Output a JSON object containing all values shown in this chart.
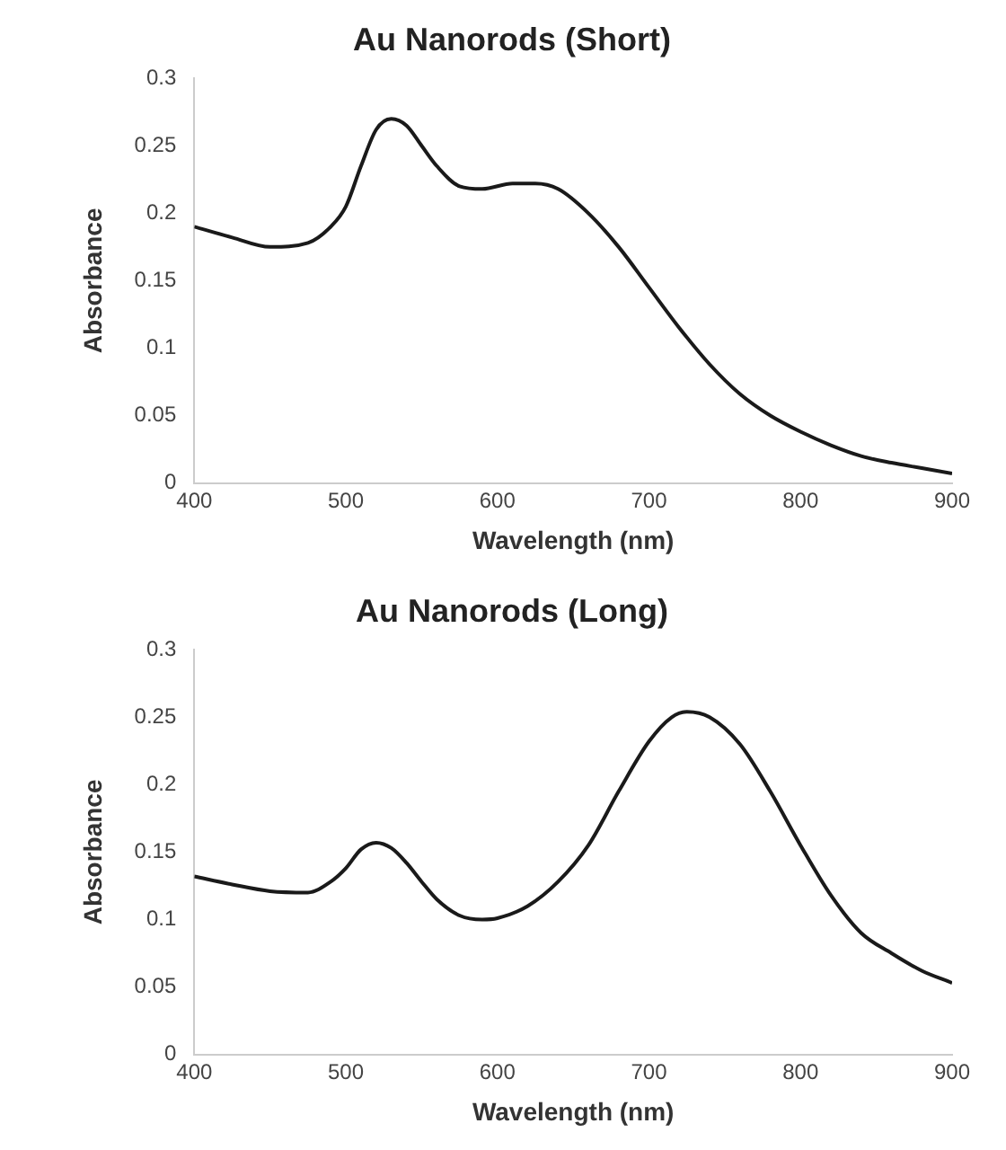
{
  "chart_data": [
    {
      "type": "line",
      "title": "Au Nanorods (Short)",
      "xlabel": "Wavelength (nm)",
      "ylabel": "Absorbance",
      "x": [
        400,
        425,
        450,
        475,
        490,
        500,
        510,
        520,
        530,
        540,
        550,
        560,
        575,
        590,
        610,
        625,
        640,
        660,
        680,
        700,
        720,
        740,
        760,
        780,
        800,
        820,
        840,
        860,
        880,
        900
      ],
      "series": [
        {
          "color": "#1a1a1a",
          "values": [
            0.19,
            0.182,
            0.175,
            0.178,
            0.19,
            0.205,
            0.235,
            0.262,
            0.27,
            0.265,
            0.25,
            0.235,
            0.22,
            0.218,
            0.222,
            0.222,
            0.218,
            0.2,
            0.175,
            0.145,
            0.115,
            0.088,
            0.066,
            0.05,
            0.038,
            0.028,
            0.02,
            0.015,
            0.011,
            0.007
          ]
        }
      ],
      "xlim": [
        400,
        900
      ],
      "xticks": [
        400,
        500,
        600,
        700,
        800,
        900
      ],
      "ylim": [
        0,
        0.3
      ],
      "yticks": [
        0,
        0.05,
        0.1,
        0.15,
        0.2,
        0.25,
        0.3
      ]
    },
    {
      "type": "line",
      "title": "Au Nanorods (Long)",
      "xlabel": "Wavelength (nm)",
      "ylabel": "Absorbance",
      "x": [
        400,
        425,
        450,
        475,
        490,
        500,
        510,
        520,
        530,
        540,
        550,
        560,
        575,
        590,
        600,
        620,
        640,
        660,
        680,
        700,
        715,
        725,
        740,
        760,
        780,
        800,
        820,
        840,
        860,
        880,
        900
      ],
      "series": [
        {
          "color": "#1a1a1a",
          "values": [
            0.132,
            0.126,
            0.121,
            0.12,
            0.128,
            0.138,
            0.152,
            0.157,
            0.153,
            0.142,
            0.128,
            0.115,
            0.103,
            0.1,
            0.101,
            0.11,
            0.128,
            0.155,
            0.195,
            0.232,
            0.25,
            0.254,
            0.25,
            0.23,
            0.195,
            0.155,
            0.118,
            0.09,
            0.075,
            0.062,
            0.053
          ]
        }
      ],
      "xlim": [
        400,
        900
      ],
      "xticks": [
        400,
        500,
        600,
        700,
        800,
        900
      ],
      "ylim": [
        0,
        0.3
      ],
      "yticks": [
        0,
        0.05,
        0.1,
        0.15,
        0.2,
        0.25,
        0.3
      ]
    }
  ]
}
